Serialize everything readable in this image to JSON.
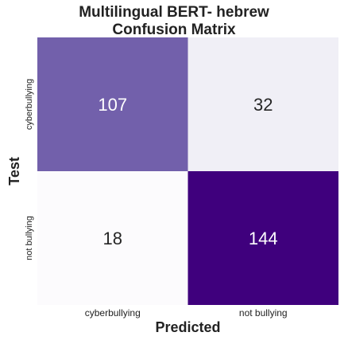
{
  "chart_data": {
    "type": "heatmap",
    "title": [
      "Multilingual BERT- hebrew",
      "Confusion Matrix"
    ],
    "xlabel": "Predicted",
    "ylabel": "Test",
    "x_categories": [
      "cyberbullying",
      "not bullying"
    ],
    "y_categories": [
      "cyberbullying",
      "not bullying"
    ],
    "values": [
      [
        107,
        32
      ],
      [
        18,
        144
      ]
    ],
    "colormap": "Purples",
    "color_range": [
      18,
      144
    ],
    "colors": {
      "low": "#fcfbfd",
      "high": "#3f007d",
      "text_on_light": "#262626",
      "text_on_dark": "#ffffff"
    }
  }
}
